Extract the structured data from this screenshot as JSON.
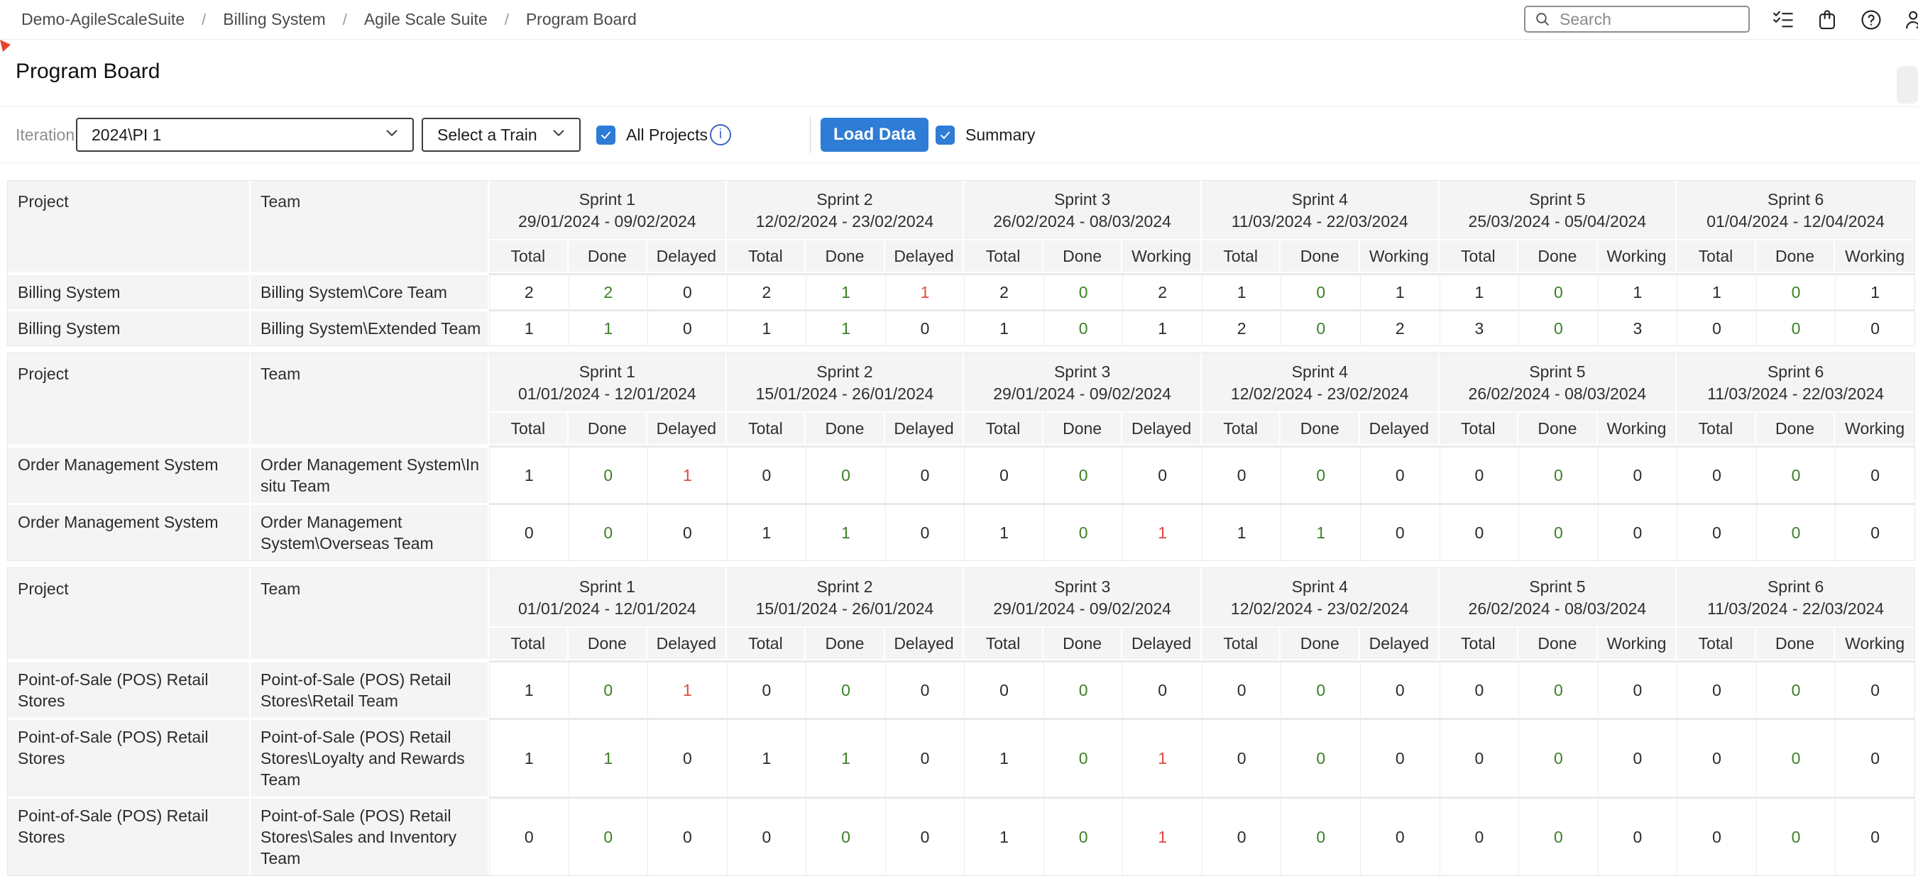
{
  "topbar": {
    "breadcrumbs": [
      "Demo-AgileScaleSuite",
      "Billing System",
      "Agile Scale Suite",
      "Program Board"
    ],
    "separator": "/",
    "search_placeholder": "Search"
  },
  "page": {
    "title": "Program Board"
  },
  "toolbar": {
    "iteration_label": "Iteration:",
    "iteration_value": "2024\\PI 1",
    "train_value": "Select a Train",
    "all_projects_label": "All Projects",
    "info_symbol": "i",
    "load_data_label": "Load Data",
    "summary_label": "Summary"
  },
  "colors": {
    "accent_blue": "#2e7cd6",
    "done_green": "#3a8126",
    "delayed_red": "#e2493d",
    "header_gray": "#f4f4f4"
  },
  "column_headers": {
    "project": "Project",
    "team": "Team"
  },
  "tables": [
    {
      "sprints": [
        {
          "name": "Sprint 1",
          "dates": "29/01/2024 - 09/02/2024",
          "cols": [
            "Total",
            "Done",
            "Delayed"
          ]
        },
        {
          "name": "Sprint 2",
          "dates": "12/02/2024 - 23/02/2024",
          "cols": [
            "Total",
            "Done",
            "Delayed"
          ]
        },
        {
          "name": "Sprint 3",
          "dates": "26/02/2024 - 08/03/2024",
          "cols": [
            "Total",
            "Done",
            "Working"
          ]
        },
        {
          "name": "Sprint 4",
          "dates": "11/03/2024 - 22/03/2024",
          "cols": [
            "Total",
            "Done",
            "Working"
          ]
        },
        {
          "name": "Sprint 5",
          "dates": "25/03/2024 - 05/04/2024",
          "cols": [
            "Total",
            "Done",
            "Working"
          ]
        },
        {
          "name": "Sprint 6",
          "dates": "01/04/2024 - 12/04/2024",
          "cols": [
            "Total",
            "Done",
            "Working"
          ]
        }
      ],
      "rows": [
        {
          "project": "Billing System",
          "team": "Billing System\\Core Team",
          "values": [
            2,
            2,
            0,
            2,
            1,
            1,
            2,
            0,
            2,
            1,
            0,
            1,
            1,
            0,
            1,
            1,
            0,
            1
          ]
        },
        {
          "project": "Billing System",
          "team": "Billing System\\Extended Team",
          "values": [
            1,
            1,
            0,
            1,
            1,
            0,
            1,
            0,
            1,
            2,
            0,
            2,
            3,
            0,
            3,
            0,
            0,
            0
          ]
        }
      ]
    },
    {
      "sprints": [
        {
          "name": "Sprint 1",
          "dates": "01/01/2024 - 12/01/2024",
          "cols": [
            "Total",
            "Done",
            "Delayed"
          ]
        },
        {
          "name": "Sprint 2",
          "dates": "15/01/2024 - 26/01/2024",
          "cols": [
            "Total",
            "Done",
            "Delayed"
          ]
        },
        {
          "name": "Sprint 3",
          "dates": "29/01/2024 - 09/02/2024",
          "cols": [
            "Total",
            "Done",
            "Delayed"
          ]
        },
        {
          "name": "Sprint 4",
          "dates": "12/02/2024 - 23/02/2024",
          "cols": [
            "Total",
            "Done",
            "Delayed"
          ]
        },
        {
          "name": "Sprint 5",
          "dates": "26/02/2024 - 08/03/2024",
          "cols": [
            "Total",
            "Done",
            "Working"
          ]
        },
        {
          "name": "Sprint 6",
          "dates": "11/03/2024 - 22/03/2024",
          "cols": [
            "Total",
            "Done",
            "Working"
          ]
        }
      ],
      "rows": [
        {
          "project": "Order Management System",
          "team": "Order Management System\\In situ Team",
          "values": [
            1,
            0,
            1,
            0,
            0,
            0,
            0,
            0,
            0,
            0,
            0,
            0,
            0,
            0,
            0,
            0,
            0,
            0
          ]
        },
        {
          "project": "Order Management System",
          "team": "Order Management System\\Overseas Team",
          "values": [
            0,
            0,
            0,
            1,
            1,
            0,
            1,
            0,
            1,
            1,
            1,
            0,
            0,
            0,
            0,
            0,
            0,
            0
          ]
        }
      ]
    },
    {
      "sprints": [
        {
          "name": "Sprint 1",
          "dates": "01/01/2024 - 12/01/2024",
          "cols": [
            "Total",
            "Done",
            "Delayed"
          ]
        },
        {
          "name": "Sprint 2",
          "dates": "15/01/2024 - 26/01/2024",
          "cols": [
            "Total",
            "Done",
            "Delayed"
          ]
        },
        {
          "name": "Sprint 3",
          "dates": "29/01/2024 - 09/02/2024",
          "cols": [
            "Total",
            "Done",
            "Delayed"
          ]
        },
        {
          "name": "Sprint 4",
          "dates": "12/02/2024 - 23/02/2024",
          "cols": [
            "Total",
            "Done",
            "Delayed"
          ]
        },
        {
          "name": "Sprint 5",
          "dates": "26/02/2024 - 08/03/2024",
          "cols": [
            "Total",
            "Done",
            "Working"
          ]
        },
        {
          "name": "Sprint 6",
          "dates": "11/03/2024 - 22/03/2024",
          "cols": [
            "Total",
            "Done",
            "Working"
          ]
        }
      ],
      "rows": [
        {
          "project": "Point-of-Sale (POS) Retail Stores",
          "team": "Point-of-Sale (POS) Retail Stores\\Retail Team",
          "values": [
            1,
            0,
            1,
            0,
            0,
            0,
            0,
            0,
            0,
            0,
            0,
            0,
            0,
            0,
            0,
            0,
            0,
            0
          ]
        },
        {
          "project": "Point-of-Sale (POS) Retail Stores",
          "team": "Point-of-Sale (POS) Retail Stores\\Loyalty and Rewards Team",
          "values": [
            1,
            1,
            0,
            1,
            1,
            0,
            1,
            0,
            1,
            0,
            0,
            0,
            0,
            0,
            0,
            0,
            0,
            0
          ]
        },
        {
          "project": "Point-of-Sale (POS) Retail Stores",
          "team": "Point-of-Sale (POS) Retail Stores\\Sales and Inventory Team",
          "values": [
            0,
            0,
            0,
            0,
            0,
            0,
            1,
            0,
            1,
            0,
            0,
            0,
            0,
            0,
            0,
            0,
            0,
            0
          ]
        }
      ]
    }
  ]
}
